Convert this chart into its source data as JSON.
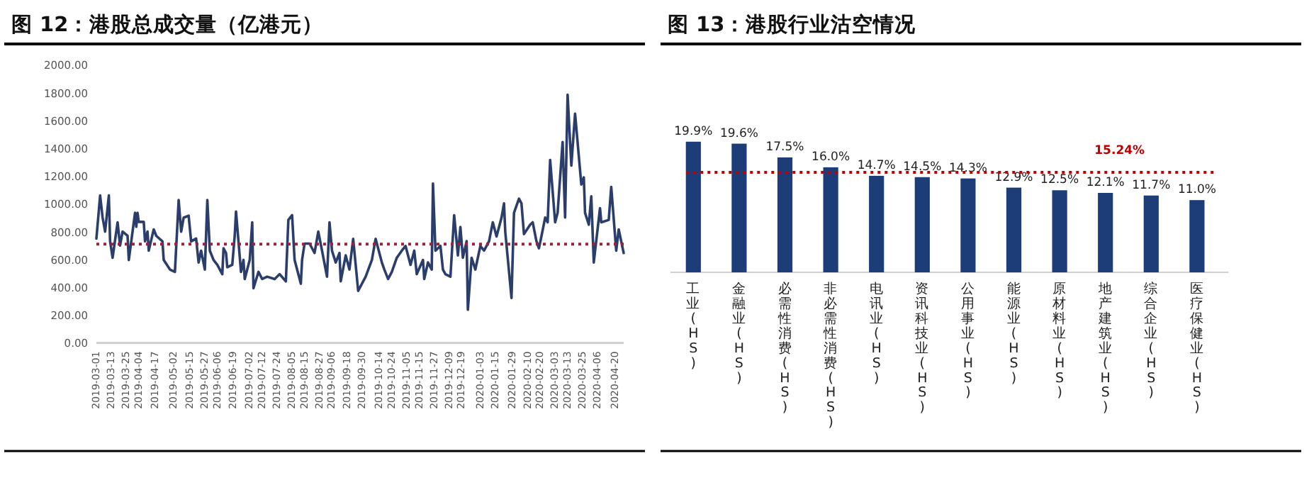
{
  "chart_data": [
    {
      "type": "line",
      "title": "图 12：港股总成交量（亿港元）",
      "color": "#2b3e6b",
      "x": [
        "2019-03-01",
        "2019-03-04",
        "2019-03-06",
        "2019-03-08",
        "2019-03-11",
        "2019-03-12",
        "2019-03-14",
        "2019-03-18",
        "2019-03-20",
        "2019-03-22",
        "2019-03-26",
        "2019-03-27",
        "2019-04-01",
        "2019-04-02",
        "2019-04-03",
        "2019-04-04",
        "2019-04-08",
        "2019-04-09",
        "2019-04-11",
        "2019-04-12",
        "2019-04-16",
        "2019-04-18",
        "2019-04-23",
        "2019-04-24",
        "2019-04-29",
        "2019-05-03",
        "2019-05-06",
        "2019-05-08",
        "2019-05-10",
        "2019-05-14",
        "2019-05-16",
        "2019-05-20",
        "2019-05-22",
        "2019-05-24",
        "2019-05-27",
        "2019-05-29",
        "2019-05-31",
        "2019-06-03",
        "2019-06-06",
        "2019-06-10",
        "2019-06-11",
        "2019-06-13",
        "2019-06-14",
        "2019-06-18",
        "2019-06-20",
        "2019-06-21",
        "2019-06-25",
        "2019-06-27",
        "2019-06-28",
        "2019-07-02",
        "2019-07-04",
        "2019-07-05",
        "2019-07-09",
        "2019-07-12",
        "2019-07-16",
        "2019-07-22",
        "2019-07-26",
        "2019-07-31",
        "2019-08-02",
        "2019-08-05",
        "2019-08-07",
        "2019-08-12",
        "2019-08-13",
        "2019-08-15",
        "2019-08-19",
        "2019-08-23",
        "2019-08-26",
        "2019-08-29",
        "2019-09-02",
        "2019-09-04",
        "2019-09-06",
        "2019-09-09",
        "2019-09-12",
        "2019-09-13",
        "2019-09-17",
        "2019-09-20",
        "2019-09-23",
        "2019-09-25",
        "2019-09-27",
        "2019-10-03",
        "2019-10-08",
        "2019-10-11",
        "2019-10-16",
        "2019-10-18",
        "2019-10-21",
        "2019-10-24",
        "2019-10-28",
        "2019-11-01",
        "2019-11-04",
        "2019-11-08",
        "2019-11-11",
        "2019-11-13",
        "2019-11-18",
        "2019-11-19",
        "2019-11-22",
        "2019-11-25",
        "2019-11-26",
        "2019-11-28",
        "2019-12-02",
        "2019-12-04",
        "2019-12-06",
        "2019-12-10",
        "2019-12-13",
        "2019-12-16",
        "2019-12-18",
        "2019-12-20",
        "2019-12-23",
        "2019-12-24",
        "2019-12-27",
        "2019-12-30",
        "2020-01-03",
        "2020-01-06",
        "2020-01-10",
        "2020-01-13",
        "2020-01-16",
        "2020-01-20",
        "2020-01-22",
        "2020-01-23",
        "2020-01-28",
        "2020-01-30",
        "2020-02-03",
        "2020-02-05",
        "2020-02-07",
        "2020-02-12",
        "2020-02-14",
        "2020-02-17",
        "2020-02-19",
        "2020-02-21",
        "2020-02-24",
        "2020-02-26",
        "2020-02-28",
        "2020-03-03",
        "2020-03-05",
        "2020-03-09",
        "2020-03-11",
        "2020-03-13",
        "2020-03-16",
        "2020-03-19",
        "2020-03-24",
        "2020-03-26",
        "2020-03-27",
        "2020-03-30",
        "2020-04-01",
        "2020-04-03",
        "2020-04-08",
        "2020-04-09",
        "2020-04-15",
        "2020-04-17",
        "2020-04-21",
        "2020-04-23",
        "2020-04-27"
      ],
      "values": [
        750,
        1060,
        900,
        800,
        1060,
        730,
        612,
        867,
        700,
        800,
        770,
        596,
        935,
        835,
        935,
        870,
        870,
        730,
        800,
        663,
        816,
        770,
        730,
        596,
        527,
        510,
        1027,
        800,
        900,
        915,
        730,
        750,
        578,
        663,
        527,
        1027,
        663,
        596,
        561,
        494,
        680,
        646,
        544,
        561,
        775,
        945,
        510,
        596,
        459,
        596,
        867,
        392,
        510,
        459,
        476,
        459,
        494,
        442,
        884,
        918,
        596,
        425,
        596,
        714,
        714,
        646,
        800,
        663,
        476,
        867,
        663,
        578,
        646,
        442,
        629,
        527,
        748,
        561,
        374,
        476,
        596,
        748,
        578,
        527,
        459,
        510,
        612,
        663,
        697,
        561,
        663,
        494,
        596,
        459,
        578,
        527,
        1146,
        663,
        697,
        527,
        494,
        476,
        918,
        629,
        833,
        612,
        731,
        238,
        612,
        527,
        697,
        663,
        731,
        867,
        765,
        901,
        1003,
        799,
        323,
        935,
        1037,
        1003,
        782,
        850,
        867,
        731,
        680,
        765,
        901,
        867,
        1316,
        867,
        935,
        1445,
        901,
        1785,
        1275,
        1649,
        1139,
        1190,
        935,
        850,
        1054,
        578,
        969,
        867,
        884,
        1122,
        663,
        816,
        646
      ],
      "xlim": [
        "2019-03-01",
        "2020-04-27"
      ],
      "xticks": [
        "2019-03-01",
        "2019-03-13",
        "2019-03-25",
        "2019-04-04",
        "2019-04-17",
        "2019-05-02",
        "2019-05-15",
        "2019-05-27",
        "2019-06-06",
        "2019-06-19",
        "2019-07-02",
        "2019-07-12",
        "2019-07-24",
        "2019-08-05",
        "2019-08-15",
        "2019-08-27",
        "2019-09-06",
        "2019-09-18",
        "2019-09-30",
        "2019-10-14",
        "2019-10-24",
        "2019-11-05",
        "2019-11-15",
        "2019-11-27",
        "2019-12-09",
        "2019-12-19",
        "2020-01-03",
        "2020-01-15",
        "2020-01-29",
        "2020-02-10",
        "2020-02-20",
        "2020-03-03",
        "2020-03-13",
        "2020-03-25",
        "2020-04-06",
        "2020-04-20"
      ],
      "ylim": [
        0,
        2000
      ],
      "yticks": [
        {
          "value": 0,
          "label": "0.00"
        },
        {
          "value": 200,
          "label": "200.00"
        },
        {
          "value": 400,
          "label": "400.00"
        },
        {
          "value": 600,
          "label": "600.00"
        },
        {
          "value": 800,
          "label": "800.00"
        },
        {
          "value": 1000,
          "label": "1000.00"
        },
        {
          "value": 1200,
          "label": "1200.00"
        },
        {
          "value": 1400,
          "label": "1400.00"
        },
        {
          "value": 1600,
          "label": "1600.00"
        },
        {
          "value": 1800,
          "label": "1800.00"
        },
        {
          "value": 2000,
          "label": "2000.00"
        }
      ],
      "ref_lines": [
        {
          "axis": "y",
          "value": 710,
          "color": "#a0203a",
          "line_style": "dotted"
        }
      ]
    },
    {
      "type": "bar",
      "title": "图 13：港股行业沽空情况",
      "color": "#1c3d78",
      "categories": [
        "工业(HS)",
        "金融业(HS)",
        "必需性消费(HS)",
        "非必需性消费(HS)",
        "电讯业(HS)",
        "资讯科技业(HS)",
        "公用事业(HS)",
        "能源业(HS)",
        "原材料业(HS)",
        "地产建筑业(HS)",
        "综合企业(HS)",
        "医疗保健业(HS)"
      ],
      "values": [
        19.9,
        19.6,
        17.5,
        16.0,
        14.7,
        14.5,
        14.3,
        12.9,
        12.5,
        12.1,
        11.7,
        11.0
      ],
      "value_labels": [
        "19.9%",
        "19.6%",
        "17.5%",
        "16.0%",
        "14.7%",
        "14.5%",
        "14.3%",
        "12.9%",
        "12.5%",
        "12.1%",
        "11.7%",
        "11.0%"
      ],
      "ref_lines": [
        {
          "axis": "y",
          "value": 15.24,
          "label": "15.24%",
          "color": "#c00000",
          "line_style": "dotted"
        }
      ]
    }
  ]
}
